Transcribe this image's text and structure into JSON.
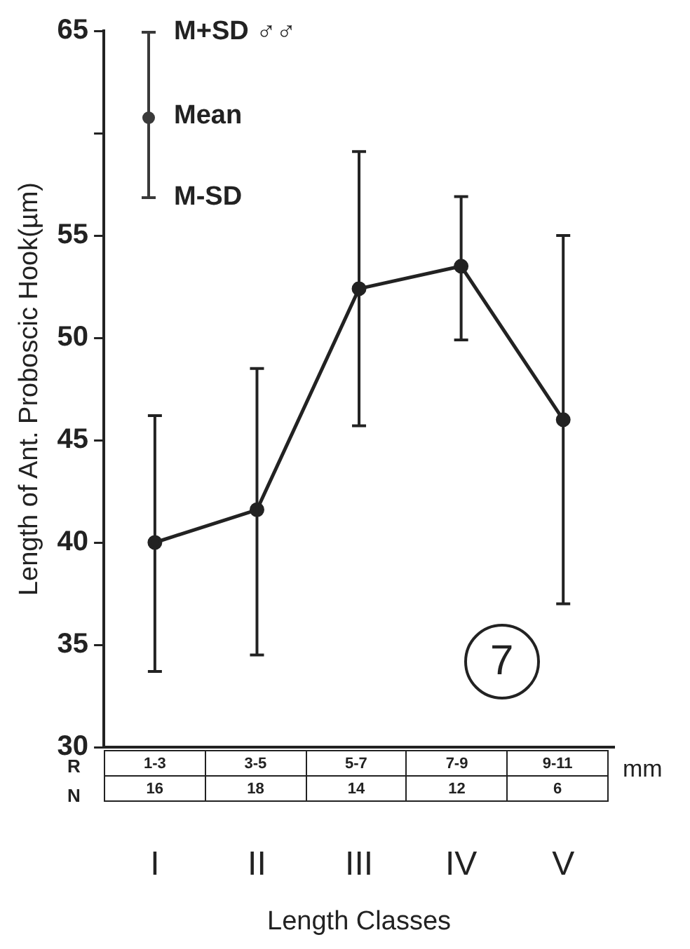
{
  "chart_data": {
    "type": "line",
    "ylabel": "Length of Ant. Proboscic Hook(µm)",
    "xlabel": "Length Classes",
    "categories": [
      "I",
      "II",
      "III",
      "IV",
      "V"
    ],
    "series": [
      {
        "color": "#222222",
        "values": [
          40,
          41.6,
          52.4,
          53.5,
          46.0
        ],
        "errors": [
          [
            33.7,
            46.2
          ],
          [
            34.5,
            48.5
          ],
          [
            45.7,
            59.1
          ],
          [
            49.9,
            56.9
          ],
          [
            37.0,
            55.0
          ]
        ]
      }
    ],
    "ylim": [
      30,
      65
    ],
    "yticks": [
      30,
      35,
      40,
      45,
      50,
      55,
      {
        "value": 60,
        "label": null
      },
      65
    ],
    "grid": false,
    "legend": false,
    "marker": "circle",
    "line_style": "solid",
    "annotations": [
      "M+SD ♂♂",
      "Mean",
      "M-SD",
      "7",
      "R",
      "1-3",
      "3-5",
      "5-7",
      "7-9",
      "9-11",
      "mm",
      "N",
      "16",
      "18",
      "14",
      "12",
      "6"
    ]
  }
}
